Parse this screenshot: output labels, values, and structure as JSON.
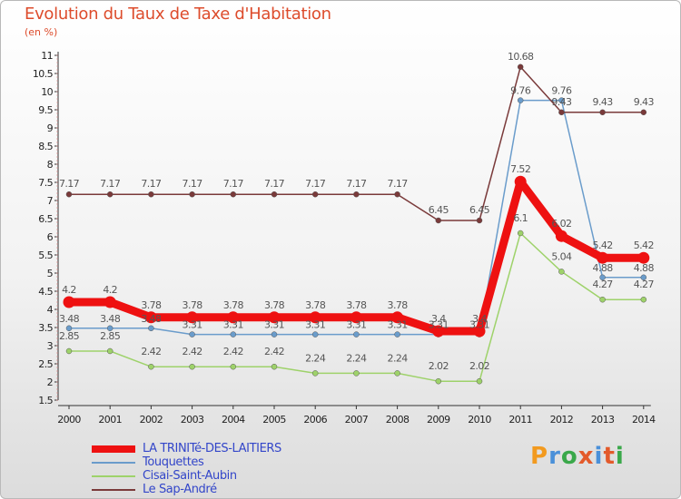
{
  "header": {
    "title": "Evolution du Taux de Taxe d'Habitation",
    "unit": "(en %)"
  },
  "brand": {
    "letters": [
      "P",
      "r",
      "o",
      "x",
      "i",
      "t",
      "i"
    ],
    "colors": [
      "#f29a1f",
      "#4a90d9",
      "#3aa84a",
      "#e35a2b",
      "#4a90d9",
      "#e35a2b",
      "#3aa84a"
    ]
  },
  "chart_data": {
    "type": "line",
    "title": "Evolution du Taux de Taxe d'Habitation",
    "ylabel": "(en %)",
    "xlabel": "",
    "x": [
      "2000",
      "2001",
      "2002",
      "2003",
      "2004",
      "2005",
      "2006",
      "2007",
      "2008",
      "2009",
      "2010",
      "2011",
      "2012",
      "2013",
      "2014"
    ],
    "ylim": [
      1.5,
      11
    ],
    "yticks": [
      "1.5",
      "2",
      "2.5",
      "3",
      "3.5",
      "4",
      "4.5",
      "5",
      "5.5",
      "6",
      "6.5",
      "7",
      "7.5",
      "8",
      "8.5",
      "9",
      "9.5",
      "10",
      "10.5",
      "11"
    ],
    "grid": false,
    "legend_position": "bottom-left",
    "series": [
      {
        "name": "LA TRINITé-DES-LAITIERS",
        "color": "#ee1111",
        "width": 9,
        "values": [
          4.2,
          4.2,
          3.78,
          3.78,
          3.78,
          3.78,
          3.78,
          3.78,
          3.78,
          3.4,
          3.4,
          7.52,
          6.02,
          5.42,
          5.42
        ],
        "labels": [
          "4.2",
          "4.2",
          "3.78",
          "3.78",
          "3.78",
          "3.78",
          "3.78",
          "3.78",
          "3.78",
          "3.4",
          "3.4",
          "7.52",
          "6.02",
          "5.42",
          "5.42"
        ]
      },
      {
        "name": "Touquettes",
        "color": "#6a9ccb",
        "width": 1.5,
        "values": [
          3.48,
          3.48,
          3.48,
          3.31,
          3.31,
          3.31,
          3.31,
          3.31,
          3.31,
          3.31,
          3.31,
          9.76,
          9.76,
          4.88,
          4.88
        ],
        "labels": [
          "3.48",
          "3.48",
          "3.48",
          "3.31",
          "3.31",
          "3.31",
          "3.31",
          "3.31",
          "3.31",
          "3.31",
          "3.31",
          "9.76",
          "9.76",
          "4.88",
          "4.88"
        ]
      },
      {
        "name": "Cisai-Saint-Aubin",
        "color": "#9ed26a",
        "width": 1.5,
        "values": [
          2.85,
          2.85,
          2.42,
          2.42,
          2.42,
          2.42,
          2.24,
          2.24,
          2.24,
          2.02,
          2.02,
          6.1,
          5.04,
          4.27,
          4.27
        ],
        "labels": [
          "2.85",
          "2.85",
          "2.42",
          "2.42",
          "2.42",
          "2.42",
          "2.24",
          "2.24",
          "2.24",
          "2.02",
          "2.02",
          "6.1",
          "5.04",
          "4.27",
          "4.27"
        ]
      },
      {
        "name": "Le Sap-André",
        "color": "#7a3a3a",
        "width": 1.5,
        "values": [
          7.17,
          7.17,
          7.17,
          7.17,
          7.17,
          7.17,
          7.17,
          7.17,
          7.17,
          6.45,
          6.45,
          10.68,
          9.43,
          9.43,
          9.43
        ],
        "labels": [
          "7.17",
          "7.17",
          "7.17",
          "7.17",
          "7.17",
          "7.17",
          "7.17",
          "7.17",
          "7.17",
          "6.45",
          "6.45",
          "10.68",
          "9.43",
          "9.43",
          "9.43"
        ]
      }
    ]
  }
}
